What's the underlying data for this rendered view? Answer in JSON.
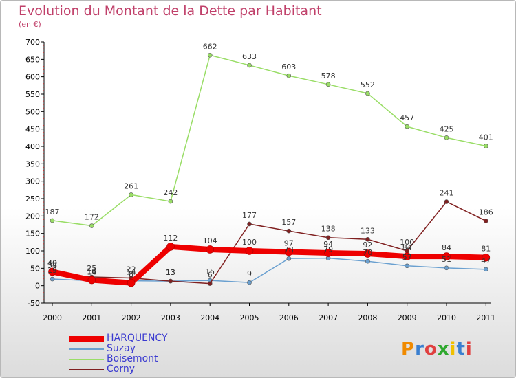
{
  "title": "Evolution du Montant de la Dette par Habitant",
  "unit": "(en €)",
  "logo": "Proxiti",
  "chart_data": {
    "type": "line",
    "x": [
      "2000",
      "2001",
      "2002",
      "2003",
      "2004",
      "2005",
      "2006",
      "2007",
      "2008",
      "2009",
      "2010",
      "2011"
    ],
    "ylim": [
      -50,
      700
    ],
    "yticks": [
      -50,
      0,
      50,
      100,
      150,
      200,
      250,
      300,
      350,
      400,
      450,
      500,
      550,
      600,
      650,
      700
    ],
    "grid": false,
    "legend_position": "bottom-left",
    "series": [
      {
        "name": "HARQUENCY",
        "color": "#ee0000",
        "width": 8,
        "labels": true,
        "values": [
          40,
          16,
          8,
          112,
          104,
          100,
          97,
          94,
          92,
          84,
          84,
          81
        ]
      },
      {
        "name": "Suzay",
        "color": "#6aa0d0",
        "width": 1.5,
        "labels": false,
        "values": [
          19,
          14,
          14,
          13,
          15,
          9,
          78,
          79,
          70,
          57,
          51,
          47
        ]
      },
      {
        "name": "Boisemont",
        "color": "#99dd66",
        "width": 1.5,
        "labels": true,
        "values": [
          187,
          172,
          261,
          242,
          662,
          633,
          603,
          578,
          552,
          457,
          425,
          401
        ]
      },
      {
        "name": "Corny",
        "color": "#802020",
        "width": 1.5,
        "labels": false,
        "values": [
          34,
          25,
          22,
          13,
          6,
          177,
          157,
          138,
          133,
          100,
          241,
          186
        ]
      }
    ],
    "data_labels": [
      {
        "x": "2000",
        "text": "40"
      },
      {
        "x": "2000",
        "text": "34"
      },
      {
        "x": "2000",
        "text": "19"
      },
      {
        "x": "2001",
        "text": "25"
      },
      {
        "x": "2001",
        "text": "16"
      },
      {
        "x": "2001",
        "text": "14"
      },
      {
        "x": "2002",
        "text": "22"
      },
      {
        "x": "2002",
        "text": "14"
      },
      {
        "x": "2002",
        "text": "8"
      },
      {
        "x": "2003",
        "text": "13"
      },
      {
        "x": "2003",
        "text": "13"
      },
      {
        "x": "2004",
        "text": "15"
      },
      {
        "x": "2004",
        "text": "6"
      },
      {
        "x": "2005",
        "text": "177"
      },
      {
        "x": "2005",
        "text": "9"
      },
      {
        "x": "2006",
        "text": "157"
      },
      {
        "x": "2006",
        "text": "78"
      },
      {
        "x": "2007",
        "text": "138"
      },
      {
        "x": "2007",
        "text": "79"
      },
      {
        "x": "2008",
        "text": "133"
      },
      {
        "x": "2008",
        "text": "70"
      },
      {
        "x": "2009",
        "text": "100"
      },
      {
        "x": "2009",
        "text": "57"
      },
      {
        "x": "2010",
        "text": "241"
      },
      {
        "x": "2010",
        "text": "51"
      },
      {
        "x": "2011",
        "text": "186"
      },
      {
        "x": "2011",
        "text": "47"
      }
    ]
  }
}
